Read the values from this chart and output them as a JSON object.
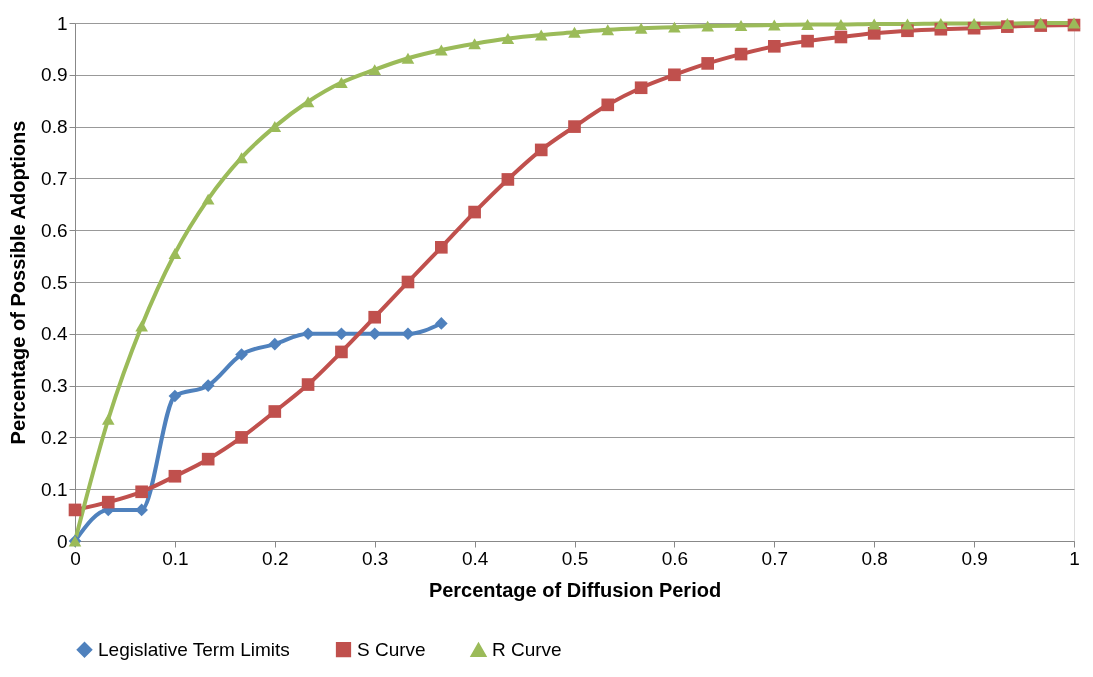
{
  "chart_data": {
    "type": "line",
    "xlabel": "Percentage of Diffusion Period",
    "ylabel": "Percentage of Possible Adoptions",
    "xlim": [
      0,
      1
    ],
    "ylim": [
      0,
      1
    ],
    "xticks": [
      0,
      0.1,
      0.2,
      0.3,
      0.4,
      0.5,
      0.6,
      0.7,
      0.8,
      0.9,
      1
    ],
    "yticks": [
      0,
      0.1,
      0.2,
      0.3,
      0.4,
      0.5,
      0.6,
      0.7,
      0.8,
      0.9,
      1
    ],
    "grid": "y",
    "legend": "bottom",
    "line_style": "solid",
    "x": [
      0,
      0.0333,
      0.0667,
      0.1,
      0.1333,
      0.1667,
      0.2,
      0.2333,
      0.2667,
      0.3,
      0.3333,
      0.3667,
      0.4,
      0.4333,
      0.4667,
      0.5,
      0.5333,
      0.5667,
      0.6,
      0.6333,
      0.6667,
      0.7,
      0.7333,
      0.7667,
      0.8,
      0.8333,
      0.8667,
      0.9,
      0.9333,
      0.9667,
      1
    ],
    "series": [
      {
        "name": "Legislative Term Limits",
        "color": "#4f81bd",
        "marker": "diamond",
        "values": [
          0,
          0.06,
          0.06,
          0.28,
          0.3,
          0.36,
          0.38,
          0.4,
          0.4,
          0.4,
          0.4,
          0.42,
          null,
          null,
          null,
          null,
          null,
          null,
          null,
          null,
          null,
          null,
          null,
          null,
          null,
          null,
          null,
          null,
          null,
          null,
          null
        ]
      },
      {
        "name": "S Curve",
        "color": "#c0504d",
        "marker": "square",
        "values": [
          0.06,
          0.075,
          0.095,
          0.125,
          0.158,
          0.2,
          0.25,
          0.302,
          0.365,
          0.432,
          0.5,
          0.567,
          0.635,
          0.698,
          0.755,
          0.8,
          0.842,
          0.875,
          0.9,
          0.922,
          0.94,
          0.955,
          0.965,
          0.973,
          0.98,
          0.985,
          0.988,
          0.99,
          0.993,
          0.995,
          0.996
        ]
      },
      {
        "name": "R Curve",
        "color": "#9bbb59",
        "marker": "triangle",
        "values": [
          0,
          0.235,
          0.415,
          0.555,
          0.66,
          0.74,
          0.8,
          0.848,
          0.885,
          0.91,
          0.932,
          0.948,
          0.96,
          0.97,
          0.977,
          0.982,
          0.987,
          0.99,
          0.992,
          0.994,
          0.995,
          0.996,
          0.997,
          0.997,
          0.998,
          0.998,
          0.999,
          0.999,
          0.999,
          1,
          1
        ]
      }
    ]
  }
}
